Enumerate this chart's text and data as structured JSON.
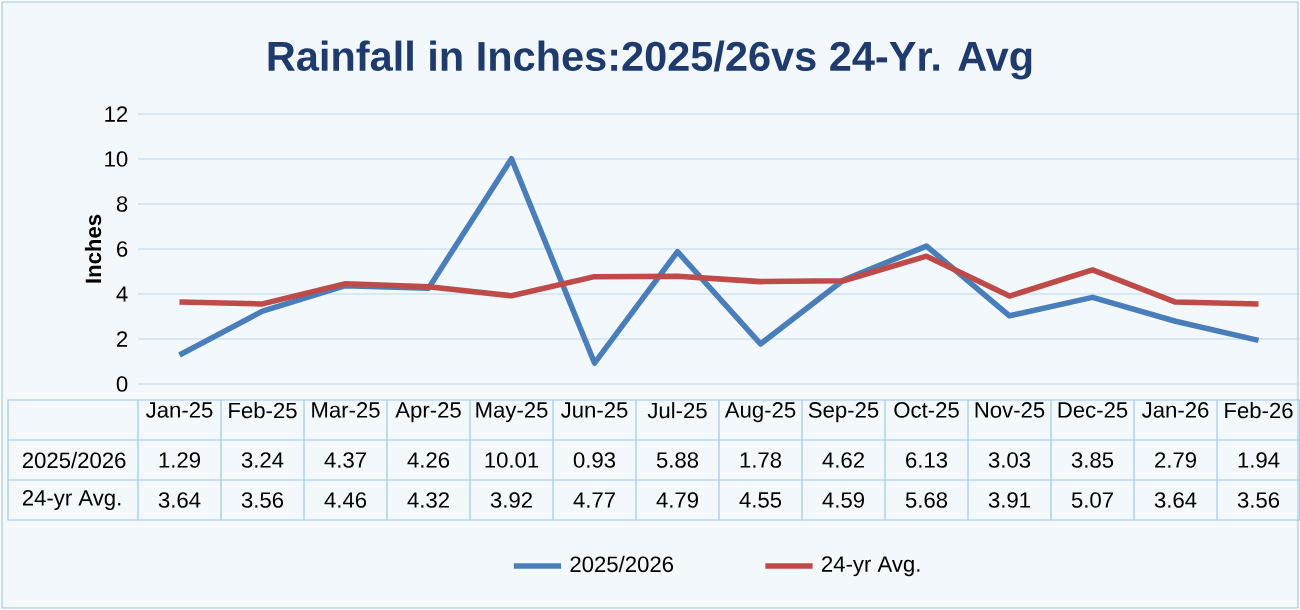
{
  "chart_data": {
    "type": "line",
    "title": "Rainfall in Inches:2025/26vs 24-Yr. Avg",
    "ylabel": "Inches",
    "categories": [
      "Jan-25",
      "Feb-25",
      "Mar-25",
      "Apr-25",
      "May-25",
      "Jun-25",
      "Jul-25",
      "Aug-25",
      "Sep-25",
      "Oct-25",
      "Nov-25",
      "Dec-25",
      "Jan-26",
      "Feb-26"
    ],
    "series": [
      {
        "name": "2025/2026",
        "color": "#4a7ebb",
        "values": [
          1.29,
          3.24,
          4.37,
          4.26,
          10.01,
          0.93,
          5.88,
          1.78,
          4.62,
          6.13,
          3.03,
          3.85,
          2.79,
          1.94
        ]
      },
      {
        "name": "24-yr Avg.",
        "color": "#be4b48",
        "values": [
          3.64,
          3.56,
          4.46,
          4.32,
          3.92,
          4.77,
          4.79,
          4.55,
          4.59,
          5.68,
          3.91,
          5.07,
          3.64,
          3.56
        ]
      }
    ],
    "ylim": [
      0,
      12
    ],
    "yticks": [
      0,
      2,
      4,
      6,
      8,
      10,
      12
    ],
    "grid": "y",
    "legend": "bottom",
    "data_labels": true
  }
}
